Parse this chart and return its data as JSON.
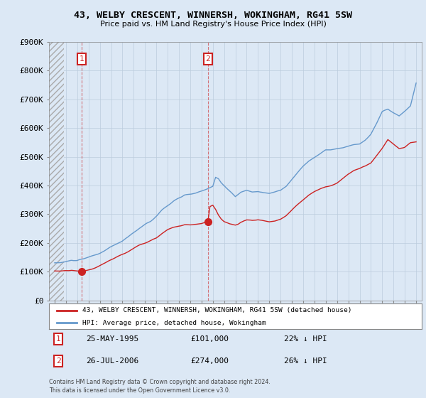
{
  "title1": "43, WELBY CRESCENT, WINNERSH, WOKINGHAM, RG41 5SW",
  "title2": "Price paid vs. HM Land Registry's House Price Index (HPI)",
  "ylabel_ticks": [
    "£0",
    "£100K",
    "£200K",
    "£300K",
    "£400K",
    "£500K",
    "£600K",
    "£700K",
    "£800K",
    "£900K"
  ],
  "ytick_values": [
    0,
    100000,
    200000,
    300000,
    400000,
    500000,
    600000,
    700000,
    800000,
    900000
  ],
  "xlim": [
    1992.5,
    2025.5
  ],
  "ylim": [
    0,
    900000
  ],
  "hpi_color": "#6699cc",
  "paid_color": "#cc2222",
  "transaction1_x": 1995.39,
  "transaction1_y": 101000,
  "transaction1_label": "1",
  "transaction2_x": 2006.57,
  "transaction2_y": 274000,
  "transaction2_label": "2",
  "legend_paid": "43, WELBY CRESCENT, WINNERSH, WOKINGHAM, RG41 5SW (detached house)",
  "legend_hpi": "HPI: Average price, detached house, Wokingham",
  "ann1_date": "25-MAY-1995",
  "ann1_price": "£101,000",
  "ann1_hpi": "22% ↓ HPI",
  "ann2_date": "26-JUL-2006",
  "ann2_price": "£274,000",
  "ann2_hpi": "26% ↓ HPI",
  "footnote": "Contains HM Land Registry data © Crown copyright and database right 2024.\nThis data is licensed under the Open Government Licence v3.0.",
  "background_color": "#dce8f5",
  "plot_bg": "#dce8f5",
  "hatch_color": "#aaaaaa"
}
